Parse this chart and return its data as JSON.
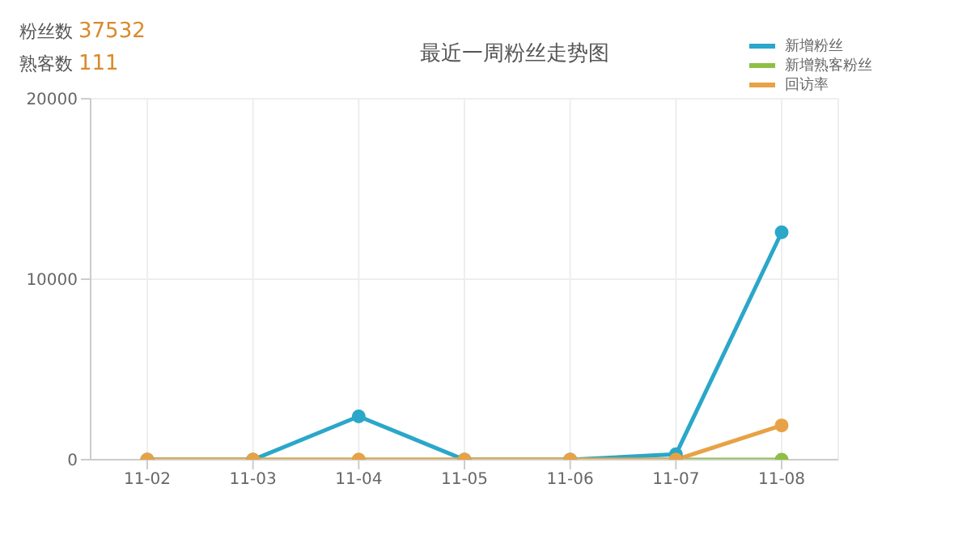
{
  "chart_data": {
    "type": "line",
    "title": "最近一周粉丝走势图",
    "annotations": [
      "粉丝数 37532",
      "熟客数 111"
    ],
    "categories": [
      "11-02",
      "11-03",
      "11-04",
      "11-05",
      "11-06",
      "11-07",
      "11-08"
    ],
    "series": [
      {
        "name": "新增粉丝",
        "color": "#2aa7c9",
        "values": [
          0,
          0,
          2400,
          0,
          0,
          300,
          12600
        ]
      },
      {
        "name": "新增熟客粉丝",
        "color": "#8dbf45",
        "values": [
          0,
          0,
          0,
          0,
          0,
          0,
          0
        ]
      },
      {
        "name": "回访率",
        "color": "#e8a246",
        "values": [
          0,
          0,
          0,
          0,
          0,
          0,
          1900
        ]
      }
    ],
    "ylim": [
      0,
      20000
    ],
    "yticks": [
      0,
      10000,
      20000
    ],
    "grid": true,
    "legend": "top right",
    "marker": "circle",
    "line_style": "solid"
  }
}
